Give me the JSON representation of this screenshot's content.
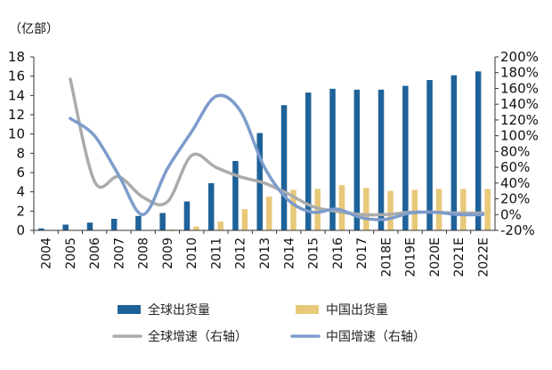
{
  "chart_data": {
    "type": "bar",
    "unit_label": "（亿部）",
    "categories": [
      "2004",
      "2005",
      "2006",
      "2007",
      "2008",
      "2009",
      "2010",
      "2011",
      "2012",
      "2013",
      "2014",
      "2015",
      "2016",
      "2017",
      "2018E",
      "2019E",
      "2020E",
      "2021E",
      "2022E"
    ],
    "series": [
      {
        "name": "全球出货量",
        "kind": "bar",
        "axis": "left",
        "color": "#1F6299",
        "values": [
          0.2,
          0.6,
          0.8,
          1.2,
          1.5,
          1.8,
          3.0,
          4.9,
          7.2,
          10.1,
          13.0,
          14.3,
          14.7,
          14.6,
          14.6,
          15.0,
          15.6,
          16.1,
          16.5
        ]
      },
      {
        "name": "中国出货量",
        "kind": "bar",
        "axis": "left",
        "color": "#E8C97A",
        "values": [
          0.0,
          0.0,
          0.0,
          0.0,
          0.0,
          0.1,
          0.4,
          0.9,
          2.2,
          3.5,
          4.2,
          4.3,
          4.7,
          4.4,
          4.1,
          4.2,
          4.3,
          4.3,
          4.3
        ]
      },
      {
        "name": "全球增速（右轴）",
        "kind": "line",
        "axis": "right",
        "color": "#ABABAB",
        "values": [
          null,
          1.72,
          0.42,
          0.48,
          0.22,
          0.16,
          0.75,
          0.6,
          0.48,
          0.4,
          0.26,
          0.1,
          0.04,
          0.0,
          0.0,
          0.03,
          0.03,
          0.02,
          0.02
        ]
      },
      {
        "name": "中国增速（右轴）",
        "kind": "line",
        "axis": "right",
        "color": "#7C9CCB",
        "values": [
          null,
          1.22,
          1.0,
          0.5,
          0.0,
          0.58,
          1.05,
          1.5,
          1.32,
          0.6,
          0.18,
          0.03,
          0.07,
          -0.04,
          -0.06,
          0.02,
          0.03,
          0.0,
          0.0
        ]
      }
    ],
    "ylim": [
      0,
      18
    ],
    "yticks": [
      0,
      2,
      4,
      6,
      8,
      10,
      12,
      14,
      16,
      18
    ],
    "y2lim": [
      -0.2,
      2.0
    ],
    "y2ticks": [
      "-20%",
      "0%",
      "20%",
      "40%",
      "60%",
      "80%",
      "100%",
      "120%",
      "140%",
      "160%",
      "180%",
      "200%"
    ],
    "legend_position": "bottom",
    "grid": false
  }
}
